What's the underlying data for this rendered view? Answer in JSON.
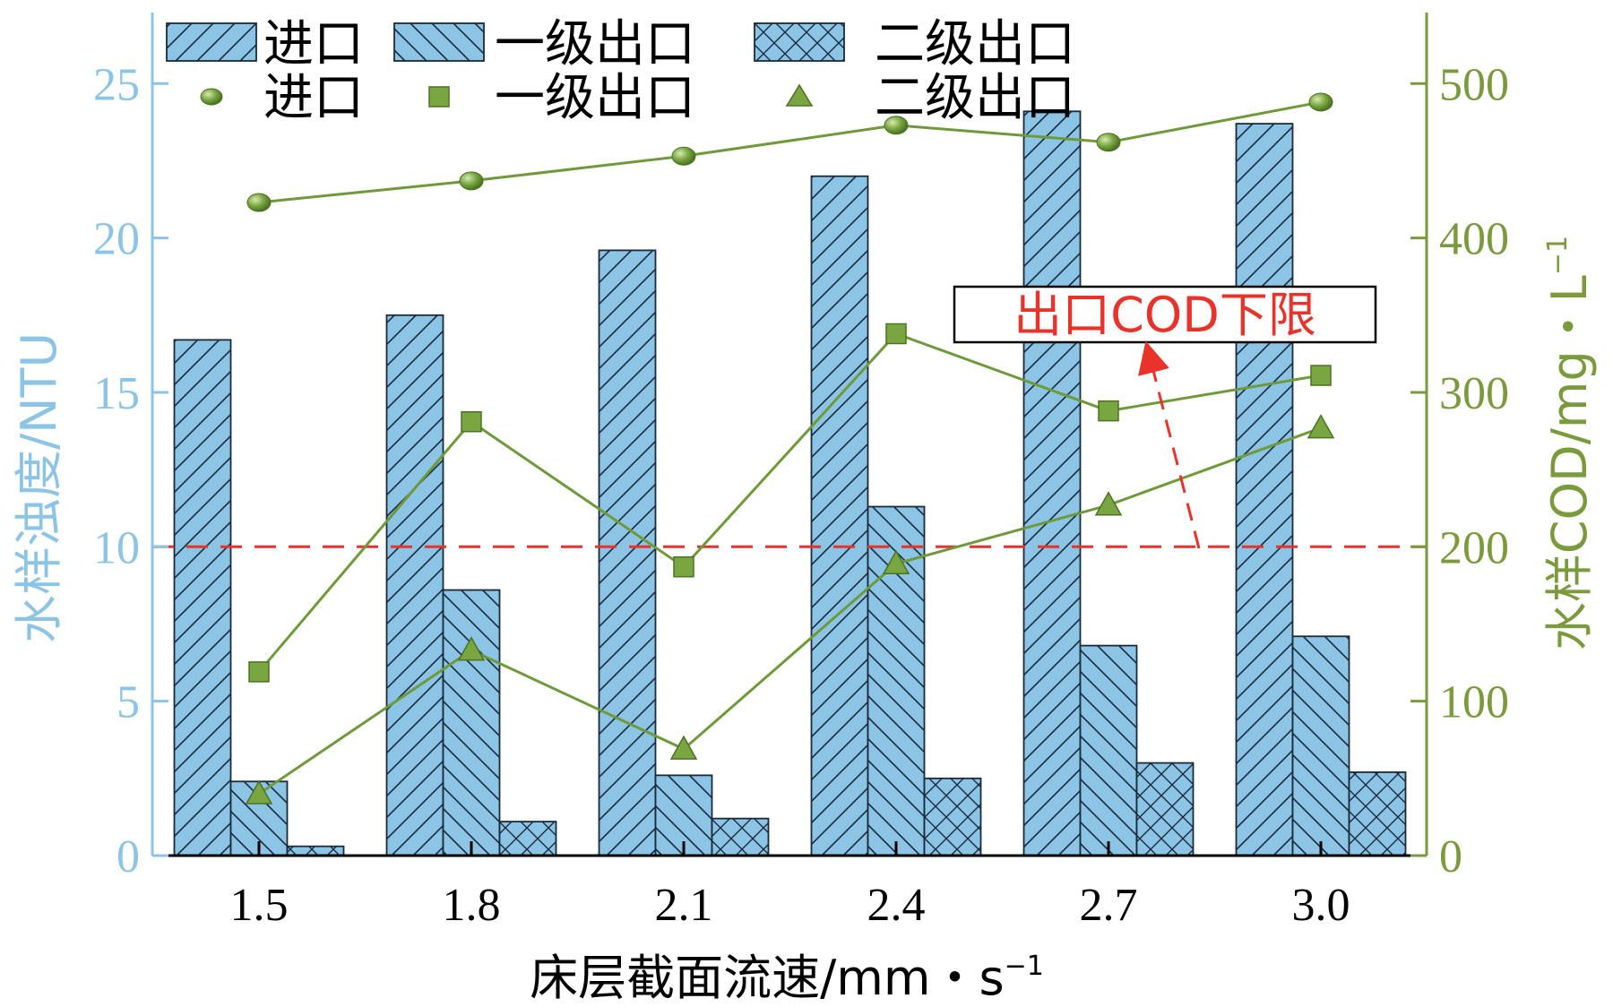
{
  "chart_data": {
    "type": "bar",
    "categories": [
      "1.5",
      "1.8",
      "2.1",
      "2.4",
      "2.7",
      "3.0"
    ],
    "xlabel": "床层截面流速/mm・s",
    "xlabel_sup": "−1",
    "ylabel_left": "水样浊度/NTU",
    "ylabel_right": "水样COD/mg・L",
    "ylabel_right_sup": "−1",
    "ylim_left": [
      0,
      27.3
    ],
    "ylim_right": [
      0,
      546
    ],
    "yticks_left": [
      0,
      5,
      10,
      15,
      20,
      25
    ],
    "yticks_right": [
      0,
      100,
      200,
      300,
      400,
      500
    ],
    "bar_series": [
      {
        "name": "进口",
        "pattern": "hatch-fwd",
        "values": [
          16.7,
          17.5,
          19.6,
          22.0,
          24.1,
          23.7
        ]
      },
      {
        "name": "一级出口",
        "pattern": "hatch-back",
        "values": [
          2.4,
          8.6,
          2.6,
          11.3,
          6.8,
          7.1
        ]
      },
      {
        "name": "二级出口",
        "pattern": "hatch-cross",
        "values": [
          0.3,
          1.1,
          1.2,
          2.5,
          3.0,
          2.7
        ]
      }
    ],
    "line_series": [
      {
        "name": "进口",
        "marker": "circle",
        "values": [
          423,
          437,
          453,
          473,
          462,
          488
        ]
      },
      {
        "name": "一级出口",
        "marker": "square",
        "values": [
          119,
          281,
          187,
          338,
          288,
          311
        ]
      },
      {
        "name": "二级出口",
        "marker": "triangle",
        "values": [
          40,
          133,
          69,
          189,
          227,
          277
        ]
      }
    ],
    "reference_line": {
      "axis": "right",
      "value": 200,
      "color": "#e8322a"
    },
    "annotation": {
      "label": "出口COD下限",
      "color": "#e8322a"
    },
    "colors": {
      "bar_fill": "#8cc4e6",
      "line": "#6e9a3a",
      "left_axis": "#8cc4e6",
      "right_axis": "#7a9a3c"
    },
    "legend_position": "top"
  }
}
